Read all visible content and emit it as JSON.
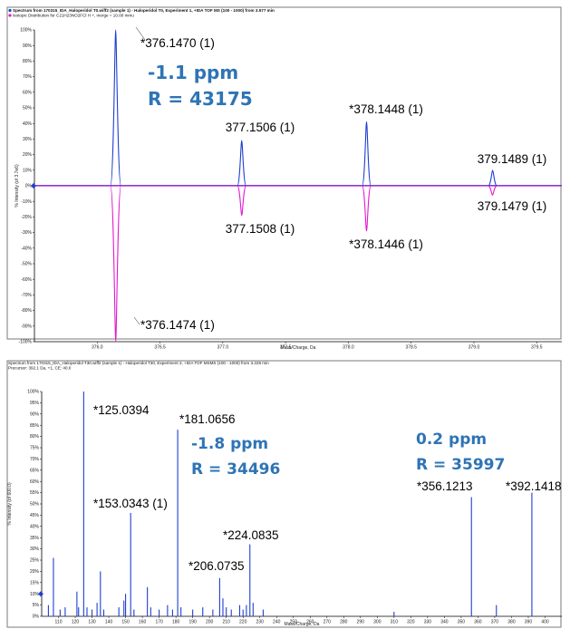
{
  "chart_data": [
    {
      "type": "line",
      "header_lines": [
        "Spectrum from 170315_IDA_Haloperidol T0.wiff2 (sample 1) - Haloperidol T0, Experiment 1, +IDA TOF MS (100 - 1000) from 3.577 min",
        "Isotopic Distribution for C21H23NO2FCl H +, merge = 10.00 mmu"
      ],
      "header_colors": [
        "#1f3fd0",
        "#e01ad0"
      ],
      "xlabel": "Mass/Charge, Da",
      "ylabel": "% Intensity (of 3.7e6)",
      "xlim": [
        375.5,
        379.7
      ],
      "ylim": [
        -100,
        100
      ],
      "x_ticks": [
        "376.0",
        "376.5",
        "377.0",
        "377.5",
        "378.0",
        "378.5",
        "379.0",
        "379.5"
      ],
      "x_tick_values": [
        376.0,
        376.5,
        377.0,
        377.5,
        378.0,
        378.5,
        379.0,
        379.5
      ],
      "y_ticks": [
        "100%",
        "90%",
        "80%",
        "70%",
        "60%",
        "50%",
        "40%",
        "30%",
        "20%",
        "10%",
        "0%",
        "-10%",
        "-20%",
        "-30%",
        "-40%",
        "-50%",
        "-60%",
        "-70%",
        "-80%",
        "-90%",
        "-100%"
      ],
      "y_tick_values": [
        100,
        90,
        80,
        70,
        60,
        50,
        40,
        30,
        20,
        10,
        0,
        -10,
        -20,
        -30,
        -40,
        -50,
        -60,
        -70,
        -80,
        -90,
        -100
      ],
      "series": [
        {
          "color": "#1f3fd0",
          "peaks": [
            {
              "x": 376.147,
              "y": 100,
              "label": "*376.1470 (1)"
            },
            {
              "x": 377.1506,
              "y": 29,
              "label": "377.1506 (1)"
            },
            {
              "x": 378.1448,
              "y": 41,
              "label": "*378.1448 (1)"
            },
            {
              "x": 379.1489,
              "y": 10,
              "label": "379.1489 (1)"
            }
          ]
        },
        {
          "color": "#e01ad0",
          "peaks": [
            {
              "x": 376.1474,
              "y": -100,
              "label": "*376.1474 (1)"
            },
            {
              "x": 377.1508,
              "y": -19,
              "label": "377.1508 (1)"
            },
            {
              "x": 378.1446,
              "y": -29,
              "label": "*378.1446 (1)"
            },
            {
              "x": 379.1479,
              "y": -6,
              "label": "379.1479 (1)"
            }
          ]
        }
      ],
      "annotations": [
        "-1.1 ppm",
        "R = 43175"
      ]
    },
    {
      "type": "bar",
      "header_lines": [
        "Spectrum from 170315_IDA_Haloperidol T30.wiff2 (sample 1) - Haloperidol T30, Experiment 2, +IDA TOF MSMS (100 - 1000) from 3.228 min",
        "Precursor: 392.1 Da, +1, CE: 40.0"
      ],
      "xlabel": "Mass/Charge, Da",
      "ylabel": "% Intensity (of 600.0)",
      "xlim": [
        100,
        410
      ],
      "ylim": [
        0,
        100
      ],
      "x_ticks": [
        "110",
        "120",
        "130",
        "140",
        "150",
        "160",
        "170",
        "180",
        "190",
        "200",
        "210",
        "220",
        "230",
        "240",
        "250",
        "260",
        "270",
        "280",
        "290",
        "300",
        "310",
        "320",
        "330",
        "340",
        "350",
        "360",
        "370",
        "380",
        "390",
        "400"
      ],
      "x_tick_values": [
        110,
        120,
        130,
        140,
        150,
        160,
        170,
        180,
        190,
        200,
        210,
        220,
        230,
        240,
        250,
        260,
        270,
        280,
        290,
        300,
        310,
        320,
        330,
        340,
        350,
        360,
        370,
        380,
        390,
        400
      ],
      "y_ticks": [
        "100%",
        "95%",
        "90%",
        "85%",
        "80%",
        "75%",
        "70%",
        "65%",
        "60%",
        "55%",
        "50%",
        "45%",
        "40%",
        "35%",
        "30%",
        "25%",
        "20%",
        "15%",
        "10%",
        "5%",
        "0%"
      ],
      "y_tick_values": [
        100,
        95,
        90,
        85,
        80,
        75,
        70,
        65,
        60,
        55,
        50,
        45,
        40,
        35,
        30,
        25,
        20,
        15,
        10,
        5,
        0
      ],
      "color": "#1f3fd0",
      "peaks": [
        {
          "x": 104.0,
          "y": 5
        },
        {
          "x": 107.0,
          "y": 26
        },
        {
          "x": 111.0,
          "y": 3
        },
        {
          "x": 114.0,
          "y": 4
        },
        {
          "x": 121.0,
          "y": 11
        },
        {
          "x": 122.0,
          "y": 4
        },
        {
          "x": 125.0394,
          "y": 100,
          "label": "*125.0394"
        },
        {
          "x": 127.0,
          "y": 4
        },
        {
          "x": 130.0,
          "y": 3
        },
        {
          "x": 133.0,
          "y": 6
        },
        {
          "x": 135.0,
          "y": 20
        },
        {
          "x": 137.0,
          "y": 3
        },
        {
          "x": 146.0,
          "y": 4
        },
        {
          "x": 149.0,
          "y": 7
        },
        {
          "x": 150.0,
          "y": 10
        },
        {
          "x": 153.0343,
          "y": 46,
          "label": "*153.0343 (1)"
        },
        {
          "x": 155.0,
          "y": 3
        },
        {
          "x": 163.0,
          "y": 13
        },
        {
          "x": 165.0,
          "y": 4
        },
        {
          "x": 170.0,
          "y": 3
        },
        {
          "x": 175.0,
          "y": 5
        },
        {
          "x": 178.0,
          "y": 3
        },
        {
          "x": 181.0656,
          "y": 83,
          "label": "*181.0656"
        },
        {
          "x": 183.0,
          "y": 4
        },
        {
          "x": 190.0,
          "y": 3
        },
        {
          "x": 196.0,
          "y": 4
        },
        {
          "x": 202.0,
          "y": 3
        },
        {
          "x": 206.0735,
          "y": 17,
          "label": "*206.0735"
        },
        {
          "x": 208.0,
          "y": 8
        },
        {
          "x": 210.0,
          "y": 4
        },
        {
          "x": 213.0,
          "y": 3
        },
        {
          "x": 218.0,
          "y": 5
        },
        {
          "x": 220.0,
          "y": 3
        },
        {
          "x": 222.0,
          "y": 5
        },
        {
          "x": 224.0835,
          "y": 32,
          "label": "*224.0835"
        },
        {
          "x": 226.0,
          "y": 6
        },
        {
          "x": 232.0,
          "y": 3
        },
        {
          "x": 310.0,
          "y": 2
        },
        {
          "x": 356.1213,
          "y": 53,
          "label": "*356.1213"
        },
        {
          "x": 371.0,
          "y": 5
        },
        {
          "x": 392.1418,
          "y": 55,
          "label": "*392.1418"
        }
      ],
      "annotations": [
        "-1.8 ppm",
        "R = 34496",
        "0.2 ppm",
        "R = 35997"
      ]
    }
  ]
}
